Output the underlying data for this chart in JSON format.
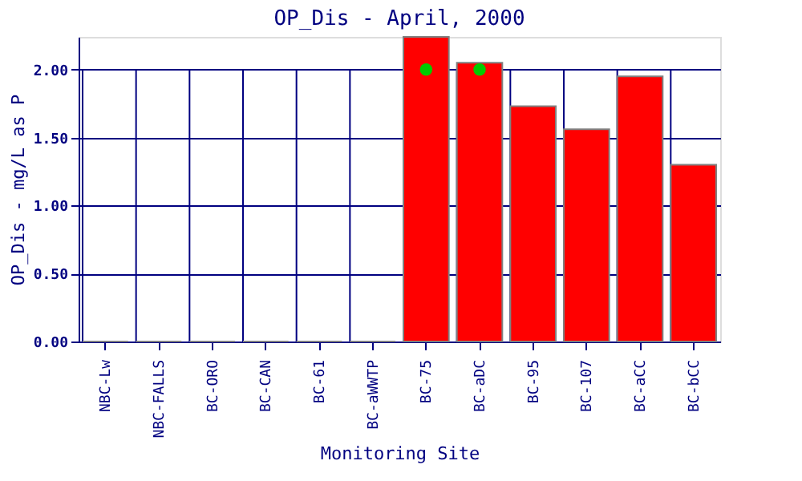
{
  "chart_data": {
    "type": "bar",
    "title": "OP_Dis - April, 2000",
    "xlabel": "Monitoring Site",
    "ylabel": "OP_Dis - mg/L as P",
    "categories": [
      "NBC-Lw",
      "NBC-FALLS",
      "BC-ORO",
      "BC-CAN",
      "BC-61",
      "BC-aWWTP",
      "BC-75",
      "BC-aDC",
      "BC-95",
      "BC-107",
      "BC-aCC",
      "BC-bCC"
    ],
    "series": [
      {
        "color": "#ff0000",
        "values": [
          0,
          0,
          0,
          0,
          0,
          0,
          2.24,
          2.05,
          1.73,
          1.56,
          1.95,
          1.3
        ]
      },
      {
        "type": "scatter",
        "color": "#00cc00",
        "x": [
          "BC-75",
          "BC-aDC"
        ],
        "values": [
          2.0,
          2.0
        ]
      }
    ],
    "ylim": [
      0,
      2.24
    ],
    "yticks": [
      {
        "value": 0,
        "label": "0.00"
      },
      {
        "value": 0.5,
        "label": "0.50"
      },
      {
        "value": 1,
        "label": "1.00"
      },
      {
        "value": 1.5,
        "label": "1.50"
      },
      {
        "value": 2,
        "label": "2.00"
      }
    ],
    "grid": true,
    "marker": "circle"
  }
}
